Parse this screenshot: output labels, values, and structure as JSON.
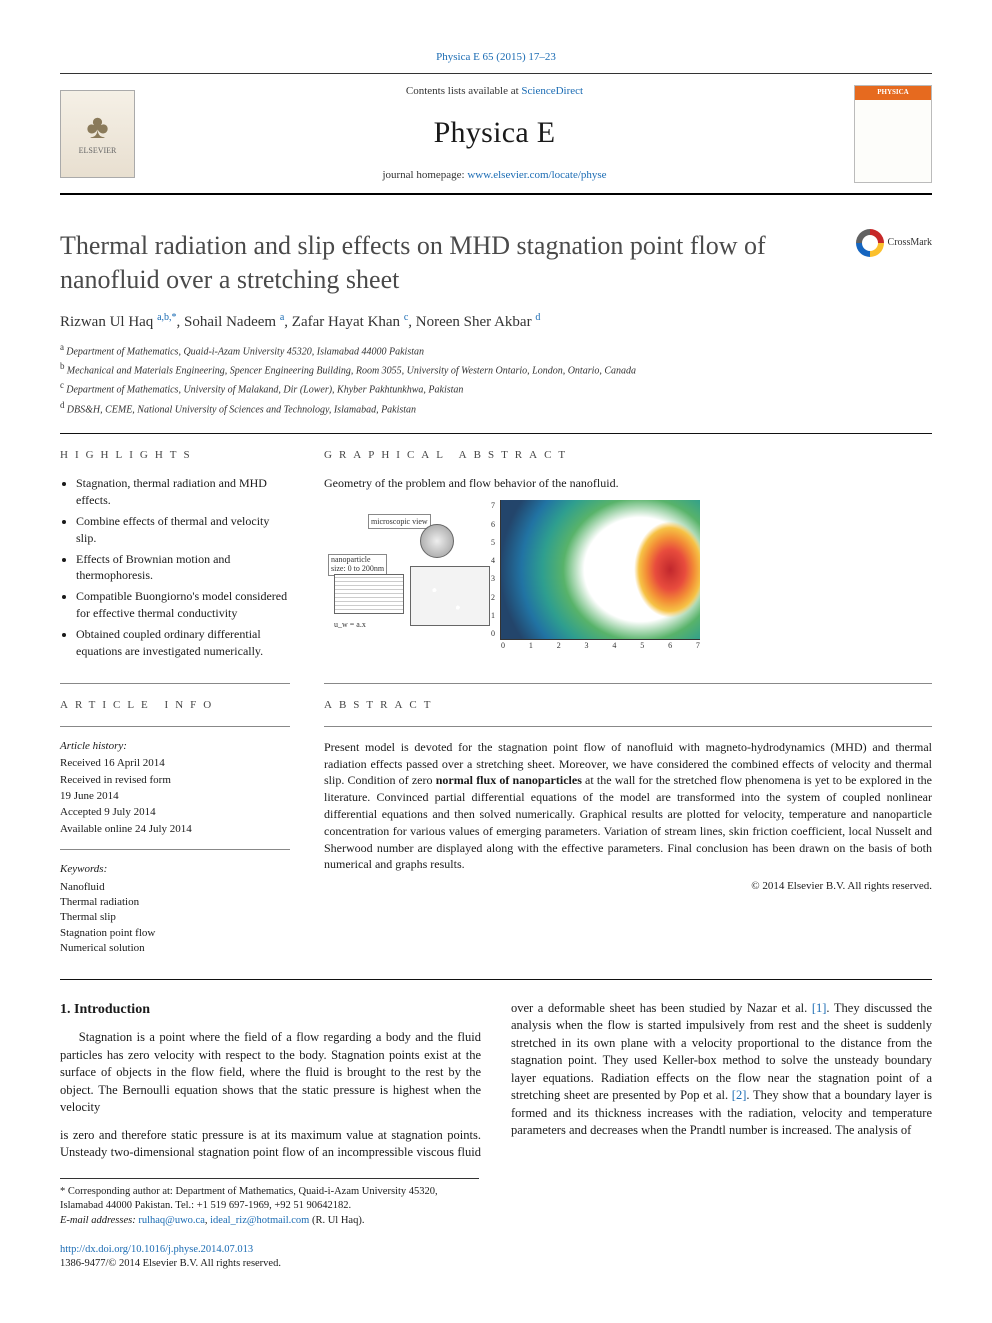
{
  "link_color": "#1a6bb3",
  "top_citation": "Physica E 65 (2015) 17–23",
  "header": {
    "contents_prefix": "Contents lists available at ",
    "contents_link": "ScienceDirect",
    "journal": "Physica E",
    "homepage_prefix": "journal homepage: ",
    "homepage_url": "www.elsevier.com/locate/physe",
    "elsevier_label": "ELSEVIER",
    "cover_brand": "PHYSICA"
  },
  "crossmark_label": "CrossMark",
  "title": "Thermal radiation and slip effects on MHD stagnation point flow of nanofluid over a stretching sheet",
  "authors_html": "Rizwan Ul Haq|a,b,*|, Sohail Nadeem|a|, Zafar Hayat Khan|c|, Noreen Sher Akbar|d|",
  "authors": [
    {
      "name": "Rizwan Ul Haq ",
      "sup": "a,b,*"
    },
    {
      "name": ", Sohail Nadeem ",
      "sup": "a"
    },
    {
      "name": ", Zafar Hayat Khan ",
      "sup": "c"
    },
    {
      "name": ", Noreen Sher Akbar ",
      "sup": "d"
    }
  ],
  "affiliations": [
    {
      "sup": "a",
      "text": "Department of Mathematics, Quaid-i-Azam University 45320, Islamabad 44000 Pakistan"
    },
    {
      "sup": "b",
      "text": "Mechanical and Materials Engineering, Spencer Engineering Building, Room 3055, University of Western Ontario, London, Ontario, Canada"
    },
    {
      "sup": "c",
      "text": "Department of Mathematics, University of Malakand, Dir (Lower), Khyber Pakhtunkhwa, Pakistan"
    },
    {
      "sup": "d",
      "text": "DBS&H, CEME, National University of Sciences and Technology, Islamabad, Pakistan"
    }
  ],
  "labels": {
    "highlights": "HIGHLIGHTS",
    "graphical_abstract": "GRAPHICAL ABSTRACT",
    "article_info": "ARTICLE INFO",
    "abstract": "ABSTRACT"
  },
  "highlights": [
    "Stagnation, thermal radiation and MHD effects.",
    "Combine effects of thermal and velocity slip.",
    "Effects of Brownian motion and thermophoresis.",
    "Compatible Buongiorno's model considered for effective thermal conductivity",
    "Obtained coupled ordinary differential equations are investigated numerically."
  ],
  "graphical_abstract": {
    "caption": "Geometry of the problem and flow behavior of the nanofluid.",
    "schematic": {
      "label_top": "microscopic view",
      "label_side": "nanoparticle\nsize: 0 to 200nm",
      "bottom_text": "u_w = a.x"
    },
    "contour": {
      "type": "contour",
      "xlim": [
        0,
        7
      ],
      "ylim": [
        0,
        7
      ],
      "xticks": [
        "0",
        "1",
        "2",
        "3",
        "4",
        "5",
        "6",
        "7"
      ],
      "yticks": [
        "7",
        "6",
        "5",
        "4",
        "3",
        "2",
        "1",
        "0"
      ],
      "color_stops": [
        "#23456b",
        "#2173a3",
        "#2e9e8f",
        "#58b36a",
        "#f6c245",
        "#f38e36",
        "#e84c3d",
        "#c1272d"
      ],
      "background_color": "#ffffff",
      "contour_values_approx": [
        0.1,
        0.2,
        0.3,
        0.4,
        0.5,
        0.6,
        0.7,
        0.8
      ]
    }
  },
  "article_info": {
    "history_label": "Article history:",
    "history": [
      "Received 16 April 2014",
      "Received in revised form",
      "19 June 2014",
      "Accepted 9 July 2014",
      "Available online 24 July 2014"
    ],
    "keywords_label": "Keywords:",
    "keywords": [
      "Nanofluid",
      "Thermal radiation",
      "Thermal slip",
      "Stagnation point flow",
      "Numerical solution"
    ]
  },
  "abstract": "Present model is devoted for the stagnation point flow of nanofluid with magneto-hydrodynamics (MHD) and thermal radiation effects passed over a stretching sheet. Moreover, we have considered the combined effects of velocity and thermal slip. Condition of zero normal flux of nanoparticles at the wall for the stretched flow phenomena is yet to be explored in the literature. Convinced partial differential equations of the model are transformed into the system of coupled nonlinear differential equations and then solved numerically. Graphical results are plotted for velocity, temperature and nanoparticle concentration for various values of emerging parameters. Variation of stream lines, skin friction coefficient, local Nusselt and Sherwood number are displayed along with the effective parameters. Final conclusion has been drawn on the basis of both numerical and graphs results.",
  "abstract_bold_phrase": "normal flux of nanoparticles",
  "copyright": "© 2014 Elsevier B.V. All rights reserved.",
  "intro_heading": "1.  Introduction",
  "intro_col1": "Stagnation is a point where the field of a flow regarding a body and the fluid particles has zero velocity with respect to the body. Stagnation points exist at the surface of objects in the flow field, where the fluid is brought to the rest by the object. The Bernoulli equation shows that the static pressure is highest when the velocity",
  "intro_col2_a": "is zero and therefore static pressure is at its maximum value at stagnation points. Unsteady two-dimensional stagnation point flow of an incompressible viscous fluid over a deformable sheet has been studied by Nazar et al. ",
  "intro_ref1": "[1]",
  "intro_col2_b": ". They discussed the analysis when the flow is started impulsively from rest and the sheet is suddenly stretched in its own plane with a velocity proportional to the distance from the stagnation point. They used Keller-box method to solve the unsteady boundary layer equations. Radiation effects on the flow near the stagnation point of a stretching sheet are presented by Pop et al. ",
  "intro_ref2": "[2]",
  "intro_col2_c": ". They show that a boundary layer is formed and its thickness increases with the radiation, velocity and temperature parameters and decreases when the Prandtl number is increased. The analysis of",
  "footnote": {
    "corr": "* Corresponding author at: Department of Mathematics, Quaid-i-Azam University 45320, Islamabad 44000 Pakistan. Tel.: +1 519 697-1969, +92 51 90642182.",
    "email_label": "E-mail addresses: ",
    "email1": "rulhaq@uwo.ca",
    "email_sep": ", ",
    "email2": "ideal_riz@hotmail.com",
    "email_suffix": " (R. Ul Haq)."
  },
  "doi": {
    "url": "http://dx.doi.org/10.1016/j.physe.2014.07.013",
    "issn_line": "1386-9477/© 2014 Elsevier B.V. All rights reserved."
  }
}
